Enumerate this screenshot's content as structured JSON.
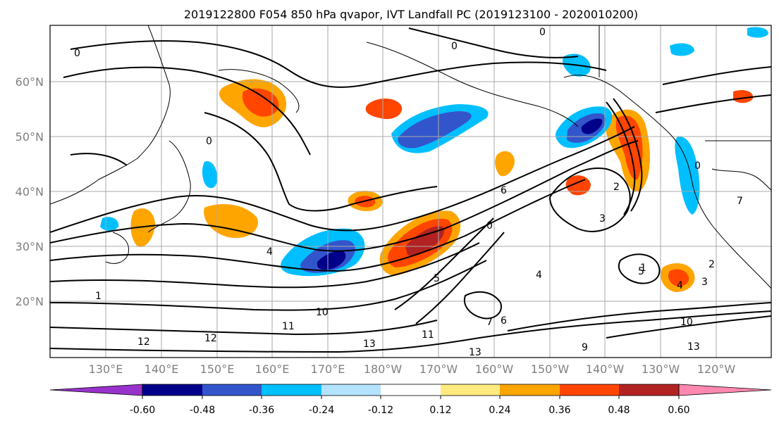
{
  "title": "2019122800 F054 850 hPa qvapor, IVT Landfall PC (2019123100 - 2020010200)",
  "latitude_labels": [
    "60°N",
    "50°N",
    "40°N",
    "30°N",
    "20°N"
  ],
  "longitude_labels": [
    "130°E",
    "140°E",
    "150°E",
    "160°E",
    "170°E",
    "180°W",
    "170°W",
    "160°W",
    "150°W",
    "140°W",
    "130°W",
    "120°W"
  ],
  "contour_labels": [
    "0",
    "0",
    "0",
    "0",
    "0",
    "0",
    "2",
    "2",
    "3",
    "3",
    "4",
    "4",
    "4",
    "5",
    "5",
    "6",
    "6",
    "7",
    "7",
    "9",
    "10",
    "10",
    "11",
    "11",
    "12",
    "12",
    "13",
    "13",
    "13",
    "1",
    "1"
  ],
  "colorbar": {
    "tick_labels": [
      "-0.60",
      "-0.48",
      "-0.36",
      "-0.24",
      "-0.12",
      "0.12",
      "0.24",
      "0.36",
      "0.48",
      "0.60"
    ],
    "colors": [
      "#9932cc",
      "#00008b",
      "#3355cc",
      "#00bfff",
      "#b3e3ff",
      "#ffffff",
      "#ffea80",
      "#ffa500",
      "#ff4500",
      "#b22222",
      "#ff88b0"
    ]
  },
  "colors": {
    "frame": "#000000",
    "grid": "#aaaaaa",
    "axis_label": "#808080"
  }
}
